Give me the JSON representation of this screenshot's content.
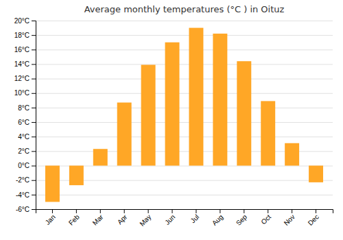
{
  "chart_data": {
    "type": "bar",
    "title": "Average monthly temperatures (°C ) in Oituz",
    "categories": [
      "Jan",
      "Feb",
      "Mar",
      "Apr",
      "May",
      "Jun",
      "Jul",
      "Aug",
      "Sep",
      "Oct",
      "Nov",
      "Dec"
    ],
    "values": [
      -5.0,
      -2.7,
      2.3,
      8.7,
      13.9,
      17.0,
      19.0,
      18.2,
      14.4,
      8.9,
      3.1,
      -2.3
    ],
    "color": "#FFA726",
    "ylim": [
      -6,
      20
    ],
    "yticks": [
      {
        "value": -6,
        "label": "-6°C"
      },
      {
        "value": -4,
        "label": "-4°C"
      },
      {
        "value": -2,
        "label": "-2°C"
      },
      {
        "value": 0,
        "label": "0°C"
      },
      {
        "value": 2,
        "label": "2°C"
      },
      {
        "value": 4,
        "label": "4°C"
      },
      {
        "value": 6,
        "label": "6°C"
      },
      {
        "value": 8,
        "label": "8°C"
      },
      {
        "value": 10,
        "label": "10°C"
      },
      {
        "value": 12,
        "label": "12°C"
      },
      {
        "value": 14,
        "label": "14°C"
      },
      {
        "value": 16,
        "label": "16°C"
      },
      {
        "value": 18,
        "label": "18°C"
      },
      {
        "value": 20,
        "label": "20°C"
      }
    ],
    "grid": true
  }
}
